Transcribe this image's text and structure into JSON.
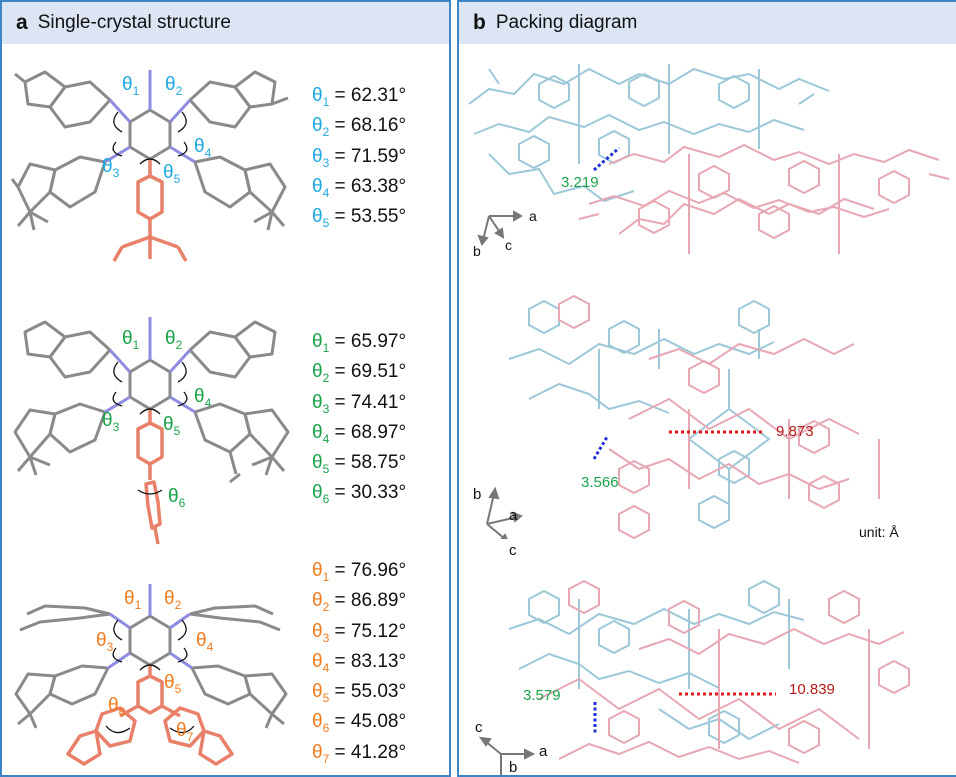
{
  "panel_a": {
    "letter": "a",
    "title": "Single-crystal structure",
    "structures": [
      {
        "color": "#1fa8e0",
        "angles": [
          {
            "sym": "θ",
            "sub": "1",
            "value": " = 62.31°"
          },
          {
            "sym": "θ",
            "sub": "2",
            "value": " = 68.16°"
          },
          {
            "sym": "θ",
            "sub": "3",
            "value": " = 71.59°"
          },
          {
            "sym": "θ",
            "sub": "4",
            "value": " = 63.38°"
          },
          {
            "sym": "θ",
            "sub": "5",
            "value": " = 53.55°"
          }
        ]
      },
      {
        "color": "#1aa34a",
        "angles": [
          {
            "sym": "θ",
            "sub": "1",
            "value": " = 65.97°"
          },
          {
            "sym": "θ",
            "sub": "2",
            "value": " = 69.51°"
          },
          {
            "sym": "θ",
            "sub": "3",
            "value": " = 74.41°"
          },
          {
            "sym": "θ",
            "sub": "4",
            "value": " = 68.97°"
          },
          {
            "sym": "θ",
            "sub": "5",
            "value": " = 58.75°"
          },
          {
            "sym": "θ",
            "sub": "6",
            "value": " = 30.33°"
          }
        ]
      },
      {
        "color": "#f07c1e",
        "angles": [
          {
            "sym": "θ",
            "sub": "1",
            "value": " = 76.96°"
          },
          {
            "sym": "θ",
            "sub": "2",
            "value": " = 86.89°"
          },
          {
            "sym": "θ",
            "sub": "3",
            "value": " = 75.12°"
          },
          {
            "sym": "θ",
            "sub": "4",
            "value": " = 83.13°"
          },
          {
            "sym": "θ",
            "sub": "5",
            "value": " = 55.03°"
          },
          {
            "sym": "θ",
            "sub": "6",
            "value": " = 45.08°"
          },
          {
            "sym": "θ",
            "sub": "7",
            "value": " = 41.28°"
          }
        ]
      }
    ]
  },
  "panel_b": {
    "letter": "b",
    "title": "Packing diagram",
    "diagrams": [
      {
        "contact": "3.219",
        "contact_color": "#1aa34a",
        "axes": [
          "a",
          "b",
          "c"
        ]
      },
      {
        "contact": "3.566",
        "contact_color": "#1aa34a",
        "distance": "9.873",
        "distance_color": "#b71c1c",
        "axes": [
          "a",
          "b",
          "c"
        ]
      },
      {
        "contact": "3.579",
        "contact_color": "#1aa34a",
        "distance": "10.839",
        "distance_color": "#b71c1c",
        "axes": [
          "a",
          "c",
          "b"
        ]
      }
    ],
    "unit": "unit: Å"
  },
  "colors": {
    "border": "#3d85c6",
    "header_bg": "#dbe5f4",
    "molecule_grey": "#8a8a8a",
    "molecule_salmon": "#e8806a",
    "molecule_blue_n": "#8d8ce0",
    "packing_blue": "#9cc8d8",
    "packing_pink": "#e7a7b3",
    "contact_line": "#1f2fd0",
    "distance_line": "#e0191c"
  }
}
